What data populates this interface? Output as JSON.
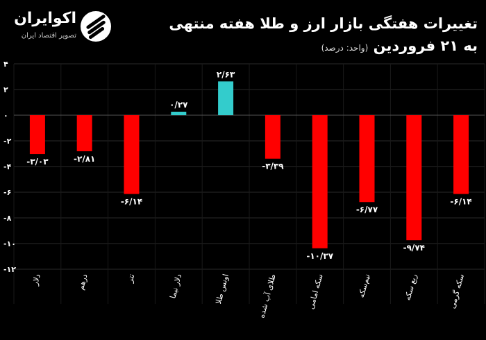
{
  "header": {
    "title_line1": "تغییرات هفتگی بازار ارز و طلا هفته منتهی",
    "title_line2": "به ۲۱ فروردین",
    "unit_note": "(واحد: درصد)"
  },
  "brand": {
    "name": "اکوایران",
    "tagline": "تصویر اقتصاد ایران"
  },
  "colors": {
    "negative": "#ff0000",
    "positive": "#33cccc",
    "background": "#000000",
    "text": "#ffffff"
  },
  "chart_data": {
    "type": "bar",
    "categories": [
      "دلار",
      "درهم",
      "تتر",
      "دلار نیما",
      "اونس طلا",
      "طلای آب شده",
      "سکه امامی",
      "نیم‌سکه",
      "ربع سکه",
      "سکه گرمی"
    ],
    "values": [
      -3.03,
      -2.81,
      -6.14,
      0.27,
      2.63,
      -3.39,
      -10.37,
      -6.77,
      -9.74,
      -6.14
    ],
    "data_labels": [
      "-۳/۰۳",
      "-۲/۸۱",
      "-۶/۱۴",
      "۰/۲۷",
      "۲/۶۳",
      "-۳/۳۹",
      "-۱۰/۳۷",
      "-۶/۷۷",
      "-۹/۷۴",
      "-۶/۱۴"
    ],
    "ylim": [
      -12,
      4
    ],
    "yticks": [
      4,
      2,
      0,
      -2,
      -4,
      -6,
      -8,
      -10,
      -12
    ],
    "ytick_labels": [
      "۴",
      "۲",
      "۰",
      "-۲",
      "-۴",
      "-۶",
      "-۸",
      "-۱۰",
      "-۱۲"
    ],
    "grid": true,
    "title": "تغییرات هفتگی بازار ارز و طلا هفته منتهی به ۲۱ فروردین",
    "ylabel": "",
    "xlabel": ""
  }
}
